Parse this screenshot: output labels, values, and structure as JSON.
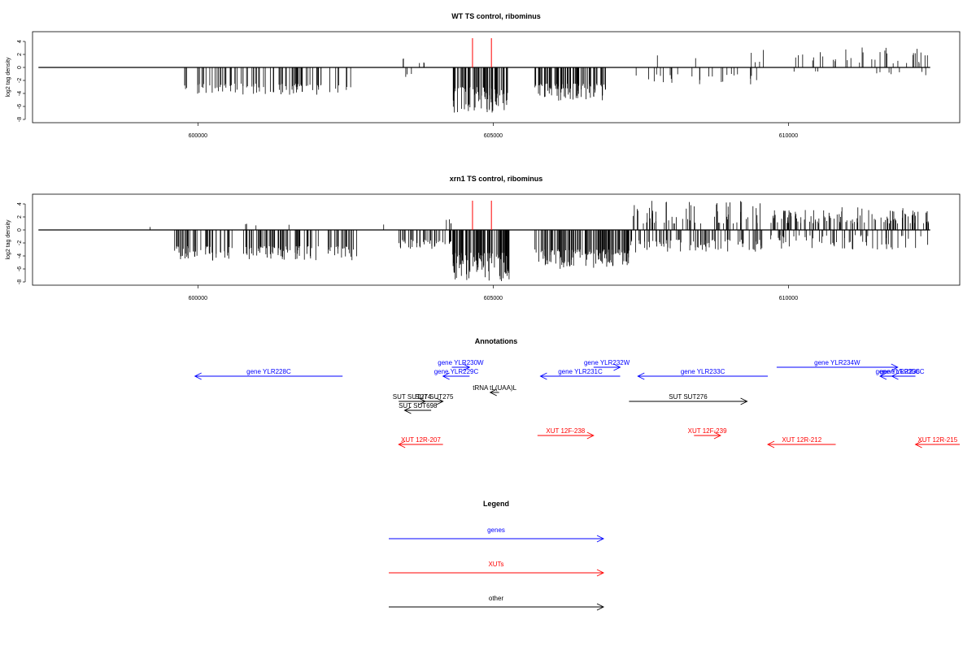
{
  "chart_data": [
    {
      "type": "bar",
      "title": "WT TS control, ribominus",
      "ylabel": "log2 tag density",
      "xlim": [
        597200,
        612900
      ],
      "ylim": [
        -8,
        5
      ],
      "x_ticks": [
        600000,
        605000,
        610000
      ],
      "x_tick_labels": [
        "600000",
        "605000",
        "610000"
      ],
      "y_ticks": [
        4,
        2,
        0,
        -2,
        -4,
        -6,
        -8
      ],
      "y_tick_labels": [
        "4",
        "2",
        "0",
        "-2",
        "-4",
        "-6",
        "-8"
      ],
      "baseline": {
        "x_start": 597300,
        "x_end": 612400,
        "y": 0
      },
      "red_markers": [
        604650,
        604970
      ],
      "red_marker_top": 4.5,
      "signal_segments": [
        {
          "x_start": 599750,
          "x_end": 602600,
          "min": -2.5,
          "peak": -4.2,
          "n": 90
        },
        {
          "x_start": 603450,
          "x_end": 603550,
          "min": 0.8,
          "peak": 1.6,
          "n": 2,
          "positive": true
        },
        {
          "x_start": 603700,
          "x_end": 603880,
          "min": 0.5,
          "peak": 1.0,
          "n": 3,
          "positive": true
        },
        {
          "x_start": 603500,
          "x_end": 603650,
          "min": -1.0,
          "peak": -2.4,
          "n": 3
        },
        {
          "x_start": 604300,
          "x_end": 605250,
          "min": -3.0,
          "peak": -7.0,
          "n": 80
        },
        {
          "x_start": 605700,
          "x_end": 606950,
          "min": -2.5,
          "peak": -5.2,
          "n": 90
        },
        {
          "x_start": 607400,
          "x_end": 609600,
          "min": -1.0,
          "peak": -2.6,
          "n": 25
        },
        {
          "x_start": 607400,
          "x_end": 609600,
          "min": 0.8,
          "peak": 2.8,
          "n": 6,
          "positive": true
        },
        {
          "x_start": 609900,
          "x_end": 612400,
          "min": 0.6,
          "peak": 3.2,
          "n": 35,
          "positive": true
        },
        {
          "x_start": 609900,
          "x_end": 612400,
          "min": -0.6,
          "peak": -1.6,
          "n": 10
        }
      ]
    },
    {
      "type": "bar",
      "title": "xrn1 TS control, ribominus",
      "ylabel": "log2 tag density",
      "xlim": [
        597200,
        612900
      ],
      "ylim": [
        -8,
        5
      ],
      "x_ticks": [
        600000,
        605000,
        610000
      ],
      "x_tick_labels": [
        "600000",
        "605000",
        "610000"
      ],
      "y_ticks": [
        4,
        2,
        0,
        -2,
        -4,
        -6,
        -8
      ],
      "y_tick_labels": [
        "4",
        "2",
        "0",
        "-2",
        "-4",
        "-6",
        "-8"
      ],
      "baseline": {
        "x_start": 597300,
        "x_end": 612400,
        "y": 0
      },
      "red_markers": [
        604650,
        604970
      ],
      "red_marker_top": 4.5,
      "signal_segments": [
        {
          "x_start": 599150,
          "x_end": 599200,
          "min": 0.4,
          "peak": 0.6,
          "n": 1,
          "positive": true
        },
        {
          "x_start": 599600,
          "x_end": 602700,
          "min": -2.5,
          "peak": -4.8,
          "n": 140
        },
        {
          "x_start": 600800,
          "x_end": 601700,
          "min": 0.5,
          "peak": 1.5,
          "n": 4,
          "positive": true
        },
        {
          "x_start": 603100,
          "x_end": 603150,
          "min": 0.6,
          "peak": 0.9,
          "n": 1,
          "positive": true
        },
        {
          "x_start": 603400,
          "x_end": 604350,
          "min": -1.5,
          "peak": -3.0,
          "n": 40
        },
        {
          "x_start": 604150,
          "x_end": 604350,
          "min": 1.0,
          "peak": 1.8,
          "n": 4,
          "positive": true
        },
        {
          "x_start": 604300,
          "x_end": 605300,
          "min": -3.5,
          "peak": -8.0,
          "n": 110
        },
        {
          "x_start": 605700,
          "x_end": 607300,
          "min": -3.0,
          "peak": -6.0,
          "n": 140
        },
        {
          "x_start": 607300,
          "x_end": 609600,
          "min": 1.0,
          "peak": 4.5,
          "n": 60,
          "positive": true
        },
        {
          "x_start": 607300,
          "x_end": 609600,
          "min": -1.5,
          "peak": -3.5,
          "n": 80
        },
        {
          "x_start": 609700,
          "x_end": 612400,
          "min": 1.0,
          "peak": 3.5,
          "n": 110,
          "positive": true
        },
        {
          "x_start": 609700,
          "x_end": 612400,
          "min": -0.8,
          "peak": -3.0,
          "n": 60
        }
      ]
    }
  ],
  "annotations": {
    "title": "Annotations",
    "features": [
      {
        "label": "gene YLR228C",
        "start": 599950,
        "end": 602450,
        "dir": "left",
        "type": "genes",
        "row": 1
      },
      {
        "label": "gene YLR230W",
        "start": 604300,
        "end": 604600,
        "dir": "right",
        "type": "genes",
        "row": 0
      },
      {
        "label": "gene YLR229C",
        "start": 604150,
        "end": 604600,
        "dir": "left",
        "type": "genes",
        "row": 1
      },
      {
        "label": "gene YLR231C",
        "start": 605800,
        "end": 607150,
        "dir": "left",
        "type": "genes",
        "row": 1
      },
      {
        "label": "gene YLR232W",
        "start": 606700,
        "end": 607150,
        "dir": "right",
        "type": "genes",
        "row": 0
      },
      {
        "label": "gene YLR233C",
        "start": 607450,
        "end": 609650,
        "dir": "left",
        "type": "genes",
        "row": 1
      },
      {
        "label": "gene YLR234W",
        "start": 609800,
        "end": 611850,
        "dir": "right",
        "type": "genes",
        "row": 0
      },
      {
        "label": "gene YLR235C",
        "start": 611550,
        "end": 612150,
        "dir": "left",
        "type": "genes",
        "row": 1
      },
      {
        "label": "gene YLR236C",
        "start": 611750,
        "end": 612100,
        "dir": "left",
        "type": "genes",
        "row": 1
      },
      {
        "label": "tRNA tL(UAA)L",
        "start": 604950,
        "end": 605100,
        "dir": "left",
        "type": "other",
        "row": 2
      },
      {
        "label": "SUT SUT275",
        "start": 603850,
        "end": 604150,
        "dir": "right",
        "type": "other",
        "row": 3
      },
      {
        "label": "SUT SUT274",
        "start": 603400,
        "end": 603850,
        "dir": "right",
        "type": "other",
        "row": 3
      },
      {
        "label": "SUT SUT698",
        "start": 603500,
        "end": 603950,
        "dir": "left",
        "type": "other",
        "row": 4
      },
      {
        "label": "SUT SUT276",
        "start": 607300,
        "end": 609300,
        "dir": "right",
        "type": "other",
        "row": 3
      },
      {
        "label": "XUT 12F-238",
        "start": 605750,
        "end": 606700,
        "dir": "right",
        "type": "XUTs",
        "row": 5
      },
      {
        "label": "XUT 12R-207",
        "start": 603400,
        "end": 604150,
        "dir": "left",
        "type": "XUTs",
        "row": 6
      },
      {
        "label": "XUT 12F-239",
        "start": 608400,
        "end": 608850,
        "dir": "right",
        "type": "XUTs",
        "row": 5
      },
      {
        "label": "XUT 12R-212",
        "start": 609650,
        "end": 610800,
        "dir": "left",
        "type": "XUTs",
        "row": 6
      },
      {
        "label": "XUT 12R-215",
        "start": 612150,
        "end": 612900,
        "dir": "left",
        "type": "XUTs",
        "row": 6
      }
    ]
  },
  "legend": {
    "title": "Legend",
    "entries": [
      {
        "label": "genes",
        "color": "#0000ff"
      },
      {
        "label": "XUTs",
        "color": "#ff0000"
      },
      {
        "label": "other",
        "color": "#000000"
      }
    ]
  },
  "colors": {
    "genes": "#0000ff",
    "XUTs": "#ff0000",
    "other": "#000000",
    "marker": "#ff0000"
  }
}
